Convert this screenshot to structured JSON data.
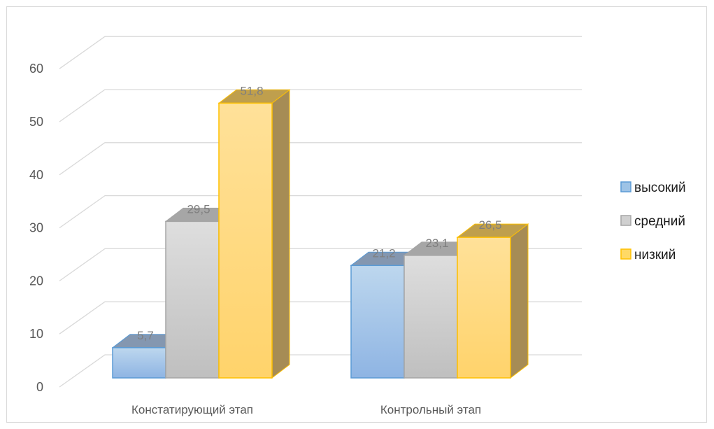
{
  "chart_data": {
    "type": "bar",
    "title": "",
    "xlabel": "",
    "ylabel": "",
    "categories": [
      "Констатирующий этап",
      "Контрольный этап"
    ],
    "series": [
      {
        "name": "высокий",
        "values": [
          5.7,
          21.2
        ],
        "color": "#9dc3e6"
      },
      {
        "name": "средний",
        "values": [
          29.5,
          23.1
        ],
        "color": "#c9c9c9"
      },
      {
        "name": "низкий",
        "values": [
          51.8,
          26.5
        ],
        "color": "#ffd966"
      }
    ],
    "ylim": [
      0,
      60
    ],
    "yticks": [
      0,
      10,
      20,
      30,
      40,
      50,
      60
    ],
    "yticks_labels": [
      "0",
      "10",
      "20",
      "30",
      "40",
      "50",
      "60"
    ],
    "data_labels": [
      [
        "5,7",
        "21,2"
      ],
      [
        "29,5",
        "23,1"
      ],
      [
        "51,8",
        "26,5"
      ]
    ],
    "grid": true,
    "legend_position": "right",
    "style": "3d-clustered-column"
  }
}
